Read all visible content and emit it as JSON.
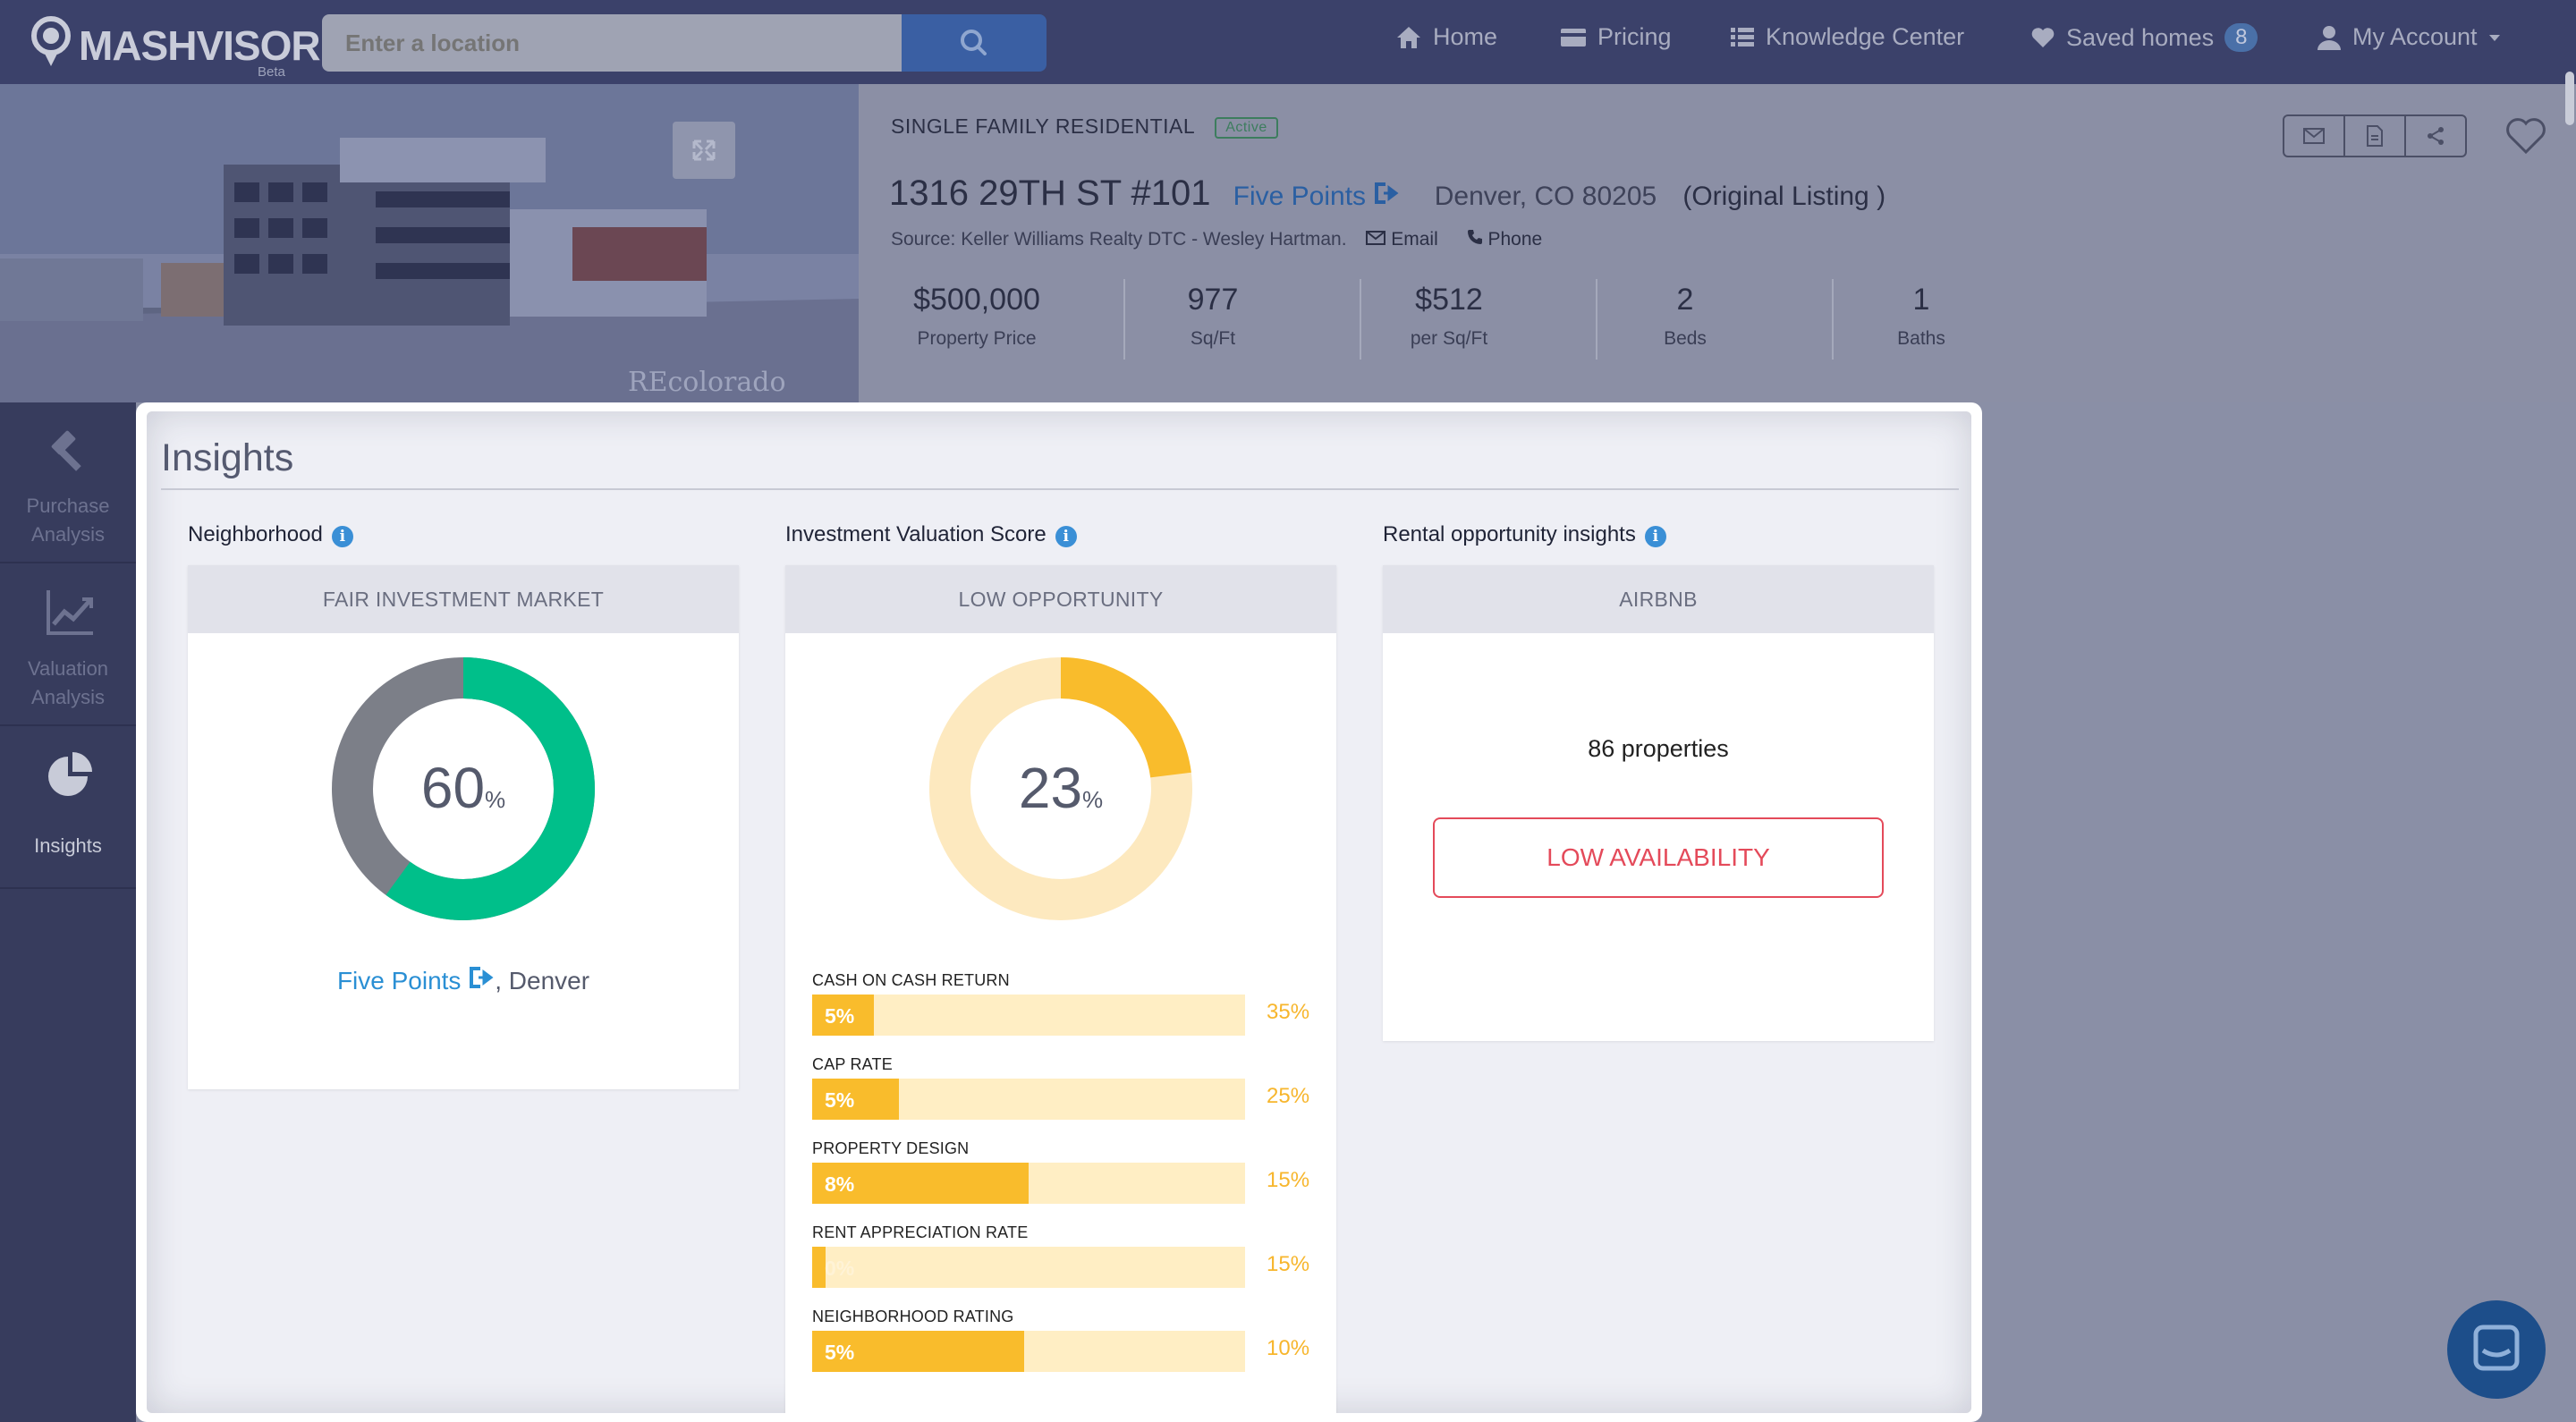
{
  "brand": {
    "name": "MASHVISOR",
    "beta": "Beta"
  },
  "search": {
    "placeholder": "Enter a location"
  },
  "nav": {
    "home": "Home",
    "pricing": "Pricing",
    "knowledge": "Knowledge Center",
    "saved": "Saved homes",
    "saved_count": "8",
    "account": "My Account"
  },
  "property": {
    "photo_watermark": "REcolorado",
    "type": "SINGLE FAMILY RESIDENTIAL",
    "status": "Active",
    "address": "1316 29TH ST #101",
    "neighborhood": "Five Points",
    "city": "Denver, CO 80205",
    "listing": "(Original Listing )",
    "source": "Source: Keller Williams Realty DTC - Wesley Hartman.",
    "email": "Email",
    "phone": "Phone",
    "stats": [
      {
        "value": "$500,000",
        "label": "Property Price"
      },
      {
        "value": "977",
        "label": "Sq/Ft"
      },
      {
        "value": "$512",
        "label": "per Sq/Ft"
      },
      {
        "value": "2",
        "label": "Beds"
      },
      {
        "value": "1",
        "label": "Baths"
      }
    ]
  },
  "sidebar": {
    "items": [
      {
        "label1": "Purchase",
        "label2": "Analysis"
      },
      {
        "label1": "Valuation",
        "label2": "Analysis"
      },
      {
        "label1": "Insights",
        "label2": ""
      }
    ]
  },
  "insights": {
    "title": "Insights",
    "neighborhood": {
      "heading": "Neighborhood",
      "band": "FAIR INVESTMENT MARKET",
      "score": 60,
      "score_text": "60",
      "pct": "%",
      "link": "Five Points",
      "city": ", Denver",
      "colors": {
        "fill": "#00bf8a",
        "track": "#7c7f88"
      }
    },
    "valuation": {
      "heading": "Investment Valuation Score",
      "band": "LOW OPPORTUNITY",
      "score": 23,
      "score_text": "23",
      "pct": "%",
      "colors": {
        "fill": "#f9bc2c",
        "track": "#fde9bf"
      },
      "bars": [
        {
          "label": "CASH ON CASH RETURN",
          "value": "5%",
          "max": "35%",
          "fill_fraction": 0.143
        },
        {
          "label": "CAP RATE",
          "value": "5%",
          "max": "25%",
          "fill_fraction": 0.2
        },
        {
          "label": "PROPERTY DESIGN",
          "value": "8%",
          "max": "15%",
          "fill_fraction": 0.5
        },
        {
          "label": "RENT APPRECIATION RATE",
          "value": "0%",
          "max": "15%",
          "fill_fraction": 0.03
        },
        {
          "label": "NEIGHBORHOOD RATING",
          "value": "5%",
          "max": "10%",
          "fill_fraction": 0.49
        }
      ]
    },
    "rental": {
      "heading": "Rental opportunity insights",
      "band": "AIRBNB",
      "count": "86 properties",
      "availability": "LOW AVAILABILITY"
    }
  }
}
